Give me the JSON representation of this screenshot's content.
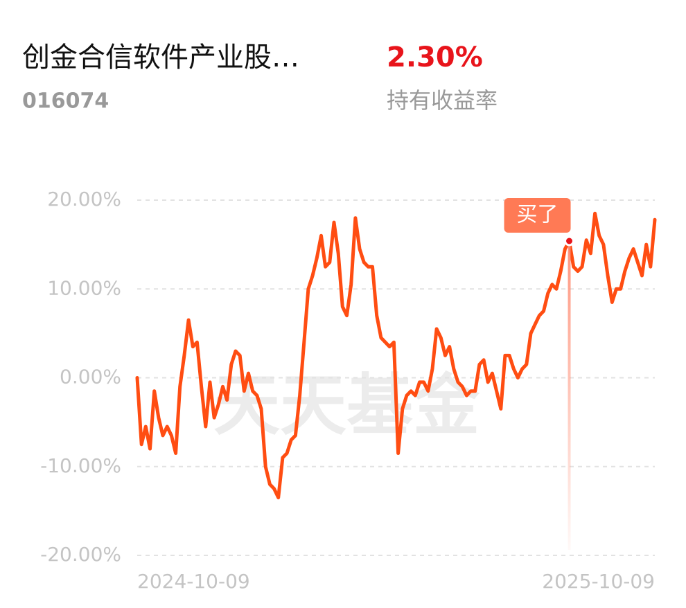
{
  "header": {
    "name": "创金合信软件产业股…",
    "code": "016074",
    "return": "2.30%",
    "return_label": "持有收益率"
  },
  "chart_data": {
    "type": "line",
    "watermark": "天天基金",
    "categories": [
      "2024-10-09",
      null,
      null,
      null,
      null,
      null,
      null,
      null,
      null,
      null,
      null,
      null,
      null,
      null,
      null,
      null,
      null,
      null,
      null,
      null,
      null,
      null,
      null,
      null,
      null,
      null,
      null,
      null,
      null,
      null,
      null,
      null,
      null,
      null,
      null,
      null,
      null,
      null,
      null,
      null,
      null,
      null,
      null,
      null,
      null,
      null,
      null,
      null,
      null,
      null,
      null,
      null,
      null,
      null,
      null,
      null,
      null,
      null,
      null,
      null,
      null,
      null,
      null,
      null,
      null,
      null,
      null,
      null,
      null,
      null,
      null,
      null,
      null,
      null,
      null,
      null,
      null,
      null,
      null,
      null,
      null,
      null,
      null,
      null,
      null,
      null,
      null,
      null,
      null,
      null,
      null,
      null,
      null,
      null,
      null,
      null,
      null,
      null,
      null,
      null,
      null,
      null,
      null,
      null,
      null,
      null,
      null,
      null,
      null,
      null,
      null,
      null,
      null,
      null,
      null,
      null,
      null,
      null,
      null,
      null,
      null,
      "2025-10-09"
    ],
    "series": [
      {
        "color": "#ff4d12",
        "values": [
          0,
          -7.5,
          -5.5,
          -8,
          -1.5,
          -4.5,
          -6.5,
          -5.5,
          -6.5,
          -8.5,
          -1,
          2.5,
          6.5,
          3.5,
          4,
          -1,
          -5.5,
          -0.5,
          -4.5,
          -3,
          -1,
          -2.5,
          1.5,
          3,
          2.5,
          -1.5,
          0.5,
          -1.5,
          -2,
          -3.5,
          -10,
          -12,
          -12.5,
          -13.5,
          -9,
          -8.5,
          -7,
          -6.5,
          -2,
          4,
          10,
          11.5,
          13.5,
          16,
          12.5,
          13,
          17.5,
          14,
          8,
          7,
          10.5,
          18,
          14.5,
          13,
          12.5,
          12.5,
          7,
          4.5,
          4,
          3.5,
          4,
          -8.5,
          -3.5,
          -2,
          -1.5,
          -2,
          -0.5,
          -0.5,
          -1.5,
          1,
          5.5,
          4.5,
          2.5,
          3.5,
          1,
          -0.5,
          -1,
          -2,
          -1.5,
          -1.5,
          1.5,
          2,
          -0.5,
          0.5,
          -1.5,
          -3.5,
          2.5,
          2.5,
          1,
          0,
          1,
          1.5,
          5,
          6,
          7,
          7.5,
          9.5,
          10.5,
          10,
          12,
          14.5,
          15.4,
          12.5,
          12,
          12.5,
          15.5,
          14,
          18.5,
          16,
          15,
          11.5,
          8.5,
          10,
          10,
          12,
          13.5,
          14.5,
          13,
          11.5,
          15,
          12.5,
          17.8
        ]
      }
    ],
    "buy_marker": {
      "text": "买了",
      "index": 101
    },
    "ylim": [
      -20,
      20
    ],
    "yticks": [
      {
        "value": -20,
        "label": "-20.00%"
      },
      {
        "value": -10,
        "label": "-10.00%"
      },
      {
        "value": 0,
        "label": "0.00%"
      },
      {
        "value": 10,
        "label": "10.00%"
      },
      {
        "value": 20,
        "label": "20.00%"
      }
    ],
    "grid": true
  }
}
